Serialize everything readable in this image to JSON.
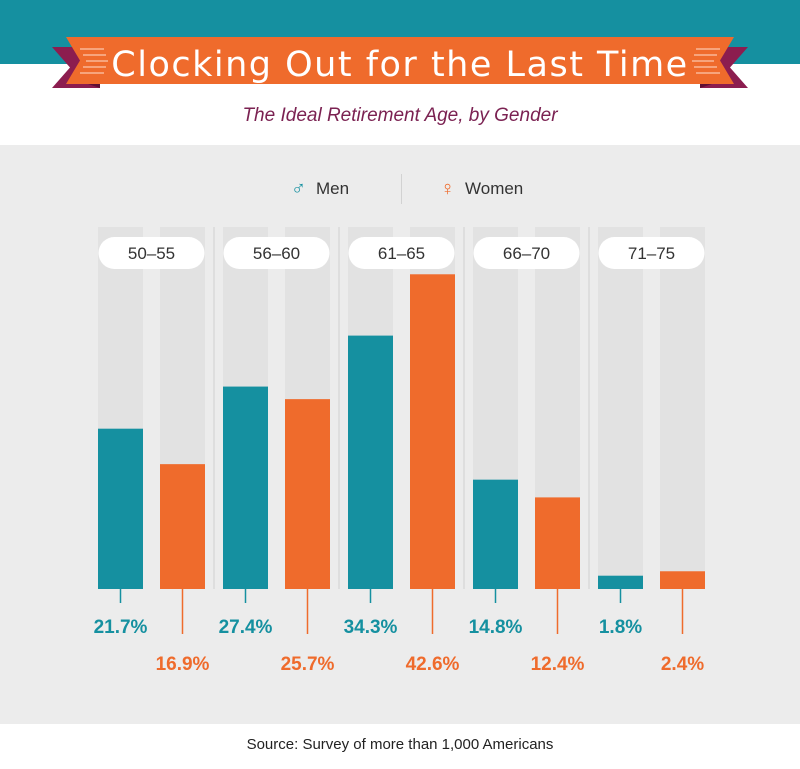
{
  "header": {
    "title": "Clocking Out for the Last Time",
    "subtitle": "The Ideal Retirement Age, by Gender"
  },
  "legend": {
    "men_symbol": "♂",
    "men_label": "Men",
    "women_symbol": "♀",
    "women_label": "Women"
  },
  "colors": {
    "men": "#1590a0",
    "women": "#ef6b2c",
    "ribbon": "#ef6b2c",
    "ribbon_fold": "#8c1d4f",
    "subtitle": "#7b2252",
    "panel": "#ececec",
    "track": "#e2e2e2"
  },
  "chart_data": {
    "type": "bar",
    "categories": [
      "50–55",
      "56–60",
      "61–65",
      "66–70",
      "71–75"
    ],
    "series": [
      {
        "name": "Men",
        "values": [
          21.7,
          27.4,
          34.3,
          14.8,
          1.8
        ],
        "labels": [
          "21.7%",
          "27.4%",
          "34.3%",
          "14.8%",
          "1.8%"
        ]
      },
      {
        "name": "Women",
        "values": [
          16.9,
          25.7,
          42.6,
          12.4,
          2.4
        ],
        "labels": [
          "16.9%",
          "25.7%",
          "42.6%",
          "12.4%",
          "2.4%"
        ]
      }
    ],
    "ylim": [
      0,
      49
    ],
    "unit": "%",
    "grid": false,
    "legend_position": "top-center"
  },
  "source": "Source: Survey of more than 1,000 Americans"
}
